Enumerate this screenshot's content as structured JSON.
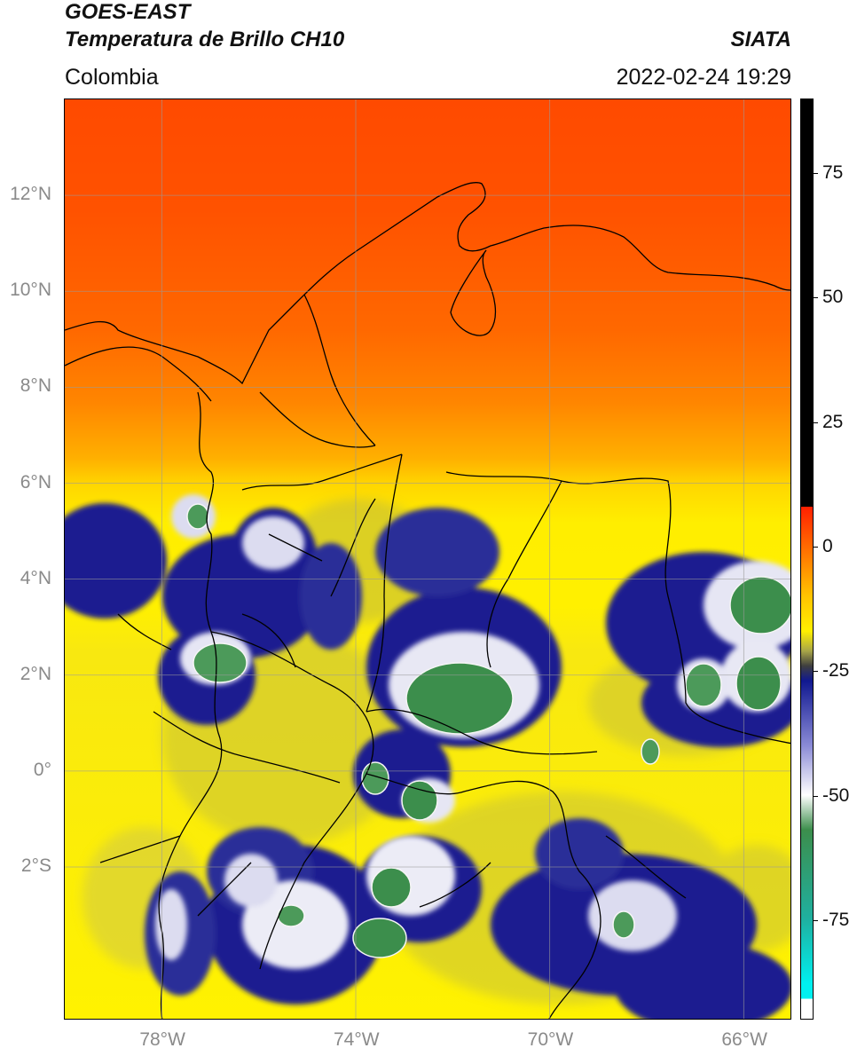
{
  "header": {
    "title_line1": "GOES-EAST",
    "title_line2": "Temperatura de Brillo CH10",
    "source": "SIATA",
    "region": "Colombia",
    "timestamp": "2022-02-24 19:29"
  },
  "map": {
    "lat_ticks": [
      {
        "lat": 12,
        "label": "12°N"
      },
      {
        "lat": 10,
        "label": "10°N"
      },
      {
        "lat": 8,
        "label": "8°N"
      },
      {
        "lat": 6,
        "label": "6°N"
      },
      {
        "lat": 4,
        "label": "4°N"
      },
      {
        "lat": 2,
        "label": "2°N"
      },
      {
        "lat": 0,
        "label": "0°"
      },
      {
        "lat": -2,
        "label": "2°S"
      }
    ],
    "lon_ticks": [
      {
        "lon": -78,
        "label": "78°W"
      },
      {
        "lon": -74,
        "label": "74°W"
      },
      {
        "lon": -70,
        "label": "70°W"
      },
      {
        "lon": -66,
        "label": "66°W"
      }
    ],
    "extent": {
      "lon_min": -80,
      "lon_max": -65,
      "lat_min": -5.2,
      "lat_max": 14
    },
    "colors": {
      "warm_top": "#ff4a00",
      "orange": "#ff9400",
      "yellow": "#fff000",
      "olive": "#b8b43a",
      "navy": "#141a8c",
      "white": "#f2f2f2",
      "green": "#3c8e4c",
      "grid": "#9a9a9a",
      "border": "#000000"
    }
  },
  "colorbar": {
    "ticks": [
      {
        "value": 75,
        "label": "75"
      },
      {
        "value": 50,
        "label": "50"
      },
      {
        "value": 25,
        "label": "25"
      },
      {
        "value": 0,
        "label": "0"
      },
      {
        "value": -25,
        "label": "-25"
      },
      {
        "value": -50,
        "label": "-50"
      },
      {
        "value": -75,
        "label": "-75"
      }
    ],
    "range": [
      -95,
      90
    ],
    "stops": [
      {
        "value": 90,
        "color": "#000000"
      },
      {
        "value": 8,
        "color": "#000000"
      },
      {
        "value": 8,
        "color": "#ff2000"
      },
      {
        "value": 0,
        "color": "#ff6a00"
      },
      {
        "value": -10,
        "color": "#ffc400"
      },
      {
        "value": -17,
        "color": "#fff000"
      },
      {
        "value": -21,
        "color": "#a8a548"
      },
      {
        "value": -24,
        "color": "#3f3f3f"
      },
      {
        "value": -27,
        "color": "#101890"
      },
      {
        "value": -40,
        "color": "#8a8ad6"
      },
      {
        "value": -50,
        "color": "#ffffff"
      },
      {
        "value": -57,
        "color": "#3c8e4c"
      },
      {
        "value": -75,
        "color": "#1fb0a0"
      },
      {
        "value": -88,
        "color": "#00f0f0"
      },
      {
        "value": -91,
        "color": "#00f0f0"
      },
      {
        "value": -91,
        "color": "#ffffff"
      },
      {
        "value": -95,
        "color": "#ffffff"
      }
    ]
  }
}
